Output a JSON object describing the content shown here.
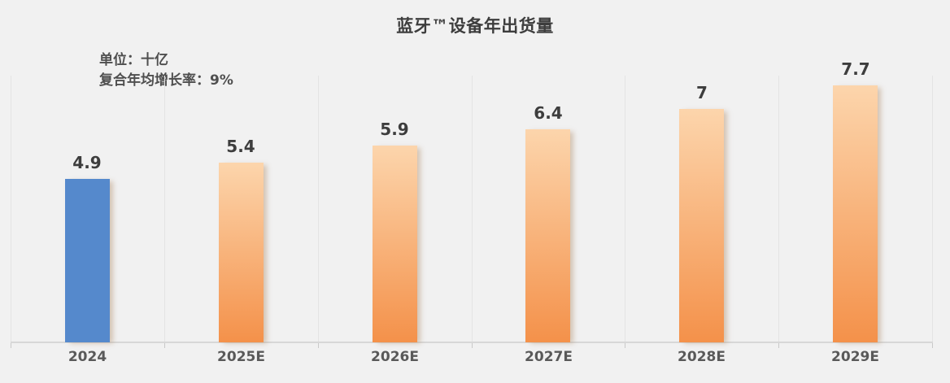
{
  "chart_data": {
    "type": "bar",
    "title": "蓝牙™设备年出货量",
    "unit_note": "单位：十亿",
    "cagr_note": "复合年均增长率：9%",
    "categories": [
      "2024",
      "2025E",
      "2026E",
      "2027E",
      "2028E",
      "2029E"
    ],
    "values": [
      4.9,
      5.4,
      5.9,
      6.4,
      7,
      7.7
    ],
    "value_labels": [
      "4.9",
      "5.4",
      "5.9",
      "6.4",
      "7",
      "7.7"
    ],
    "xlabel": "",
    "ylabel": "",
    "ylim": [
      0,
      8
    ],
    "legend": "none",
    "grid": "vertical-category-separators",
    "colors": {
      "background": "#f1f1f1",
      "bar_2024": "#5589cc",
      "bar_forecast_top": "#fcd5ac",
      "bar_forecast_bottom": "#f4914a",
      "gridline": "#e4e4e4",
      "axis_line": "#d7d7d7",
      "value_label_text": "#3d3d3d",
      "axis_label_text": "#595959",
      "title_text": "#3d3d3d"
    }
  }
}
